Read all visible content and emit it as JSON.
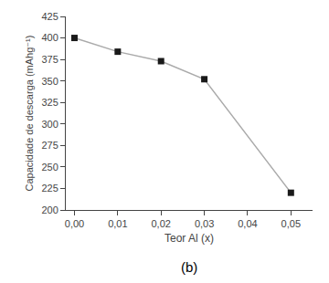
{
  "chart_data": {
    "type": "line",
    "x": [
      0.0,
      0.01,
      0.02,
      0.03,
      0.05
    ],
    "series": [
      {
        "color": "#aaaaaa",
        "colors": [
          "#1a1a1a",
          "#1a1a1a",
          "#1a1a1a",
          "#1a1a1a",
          "#1a1a1a"
        ],
        "marker": "square",
        "values": [
          400,
          384,
          373,
          352,
          220
        ]
      }
    ],
    "xlabel": "Teor Al (x)",
    "ylabel": "Capacidade de descarga (mAhg⁻¹)",
    "annotations": [
      {
        "text": "(b)"
      }
    ],
    "xlim": [
      -0.002,
      0.055
    ],
    "ylim": [
      200,
      425
    ],
    "xticks": [
      {
        "value": 0.0,
        "label": "0,00"
      },
      {
        "value": 0.01,
        "label": "0,01"
      },
      {
        "value": 0.02,
        "label": "0,02"
      },
      {
        "value": 0.03,
        "label": "0,03"
      },
      {
        "value": 0.04,
        "label": "0,04"
      },
      {
        "value": 0.05,
        "label": "0,05"
      }
    ],
    "yticks": [
      200,
      225,
      250,
      275,
      300,
      325,
      350,
      375,
      400,
      425
    ],
    "grid": false
  }
}
